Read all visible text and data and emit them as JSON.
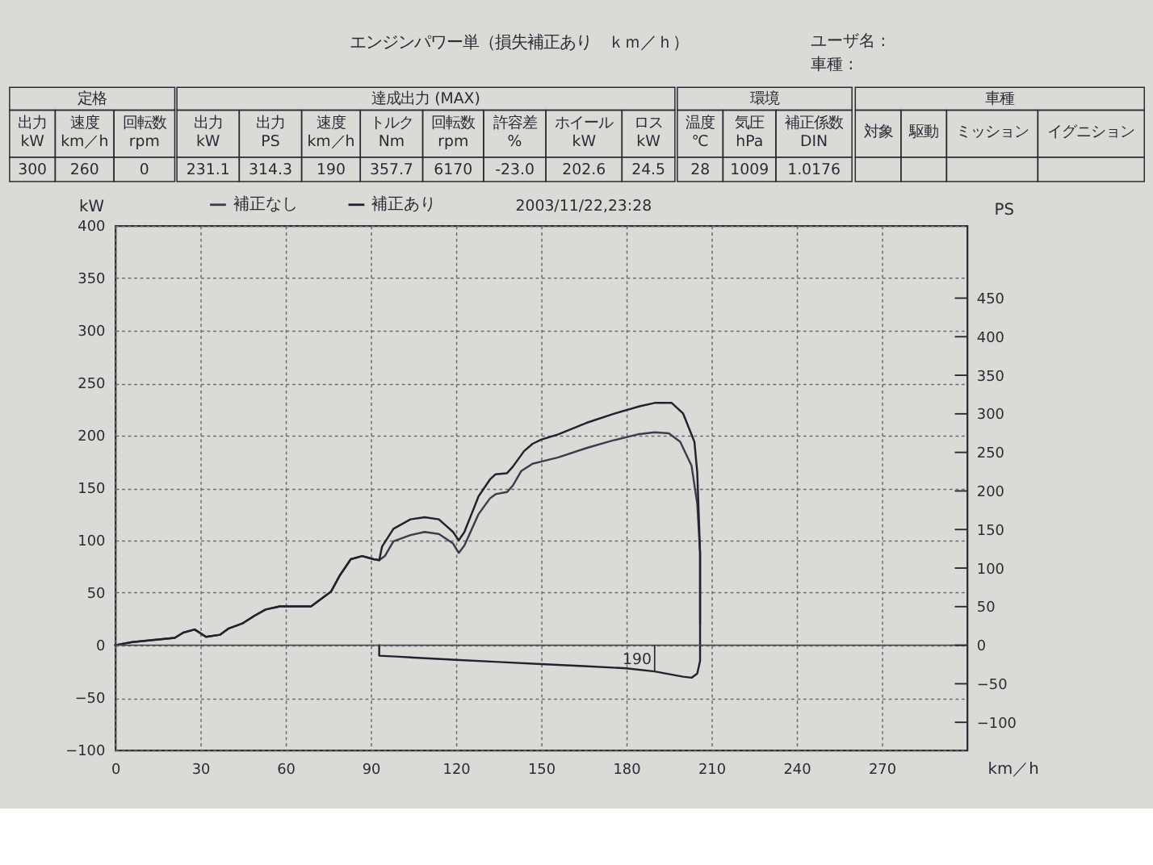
{
  "chart_data": [
    {
      "type": "other",
      "title": "エンジンパワー単（損失補正あり　ｋｍ／ｈ）",
      "annotations": [
        "ユーザ名 :",
        "車種 :"
      ]
    },
    {
      "type": "other",
      "title": "定格",
      "categories": [
        "出力 kW",
        "速度 km／h",
        "回転数 rpm"
      ],
      "values": [
        300,
        260,
        0
      ],
      "data_labels": true
    },
    {
      "type": "other",
      "title": "達成出力 (MAX)",
      "categories": [
        "出力 kW",
        "出力 PS",
        "速度 km／h",
        "トルク Nm",
        "回転数 rpm",
        "許容差 %",
        "ホイール kW",
        "ロス kW"
      ],
      "values": [
        231.1,
        314.3,
        190,
        357.7,
        6170,
        -23.0,
        202.6,
        24.5
      ],
      "value_labels": [
        "231.1",
        "314.3",
        "190",
        "357.7",
        "6170",
        "-23.0",
        "202.6",
        "24.5"
      ]
    },
    {
      "type": "other",
      "title": "環境",
      "categories": [
        "温度 ℃",
        "気圧 hPa",
        "補正係数 DIN"
      ],
      "values": [
        28,
        1009,
        1.0176
      ],
      "data_labels": true
    },
    {
      "type": "other",
      "title": "車種",
      "categories": [
        "対象",
        "駆動",
        "ミッション",
        "イグニション"
      ],
      "values": [
        null,
        null,
        null,
        null
      ],
      "data_labels": true
    },
    {
      "type": "line",
      "xlabel": "km／h",
      "ylabel": "kW",
      "y2label": "PS",
      "xlim": [
        0,
        300
      ],
      "xticks": [
        0,
        30,
        60,
        90,
        120,
        150,
        180,
        210,
        240,
        270
      ],
      "ylim": [
        -100,
        400
      ],
      "yticks": [
        -100,
        -50,
        0,
        50,
        100,
        150,
        200,
        250,
        300,
        350,
        400
      ],
      "y2lim": [
        -136,
        544
      ],
      "y2ticks": [
        -100,
        -50,
        0,
        50,
        100,
        150,
        200,
        250,
        300,
        350,
        400,
        450
      ],
      "grid": true,
      "legend": "top",
      "line_style": "solid",
      "ref_lines": [
        {
          "axis": "y",
          "value": 0,
          "color": "#4a4a58"
        }
      ],
      "annotations": [
        "2003/11/22,23:28",
        {
          "text": "190",
          "x": 190,
          "y": -25
        }
      ],
      "series": [
        {
          "name": "補正なし",
          "color": "#3c3c4c",
          "x": [
            0,
            6,
            21,
            24,
            28,
            32,
            37,
            40,
            45,
            49,
            53,
            58,
            63,
            69,
            76,
            79,
            83,
            87,
            91,
            93,
            95,
            98,
            104,
            109,
            114,
            119,
            121,
            123,
            128,
            132,
            134,
            138,
            140,
            143,
            147,
            150,
            156,
            166,
            175,
            184,
            190,
            195,
            199,
            203,
            205,
            206,
            206
          ],
          "values": [
            0,
            3,
            7,
            12,
            15,
            8,
            10,
            16,
            21,
            28,
            34,
            37,
            37,
            37,
            51,
            66,
            82,
            85,
            82,
            81,
            85,
            99,
            105,
            108,
            106,
            97,
            88,
            95,
            125,
            140,
            144,
            146,
            152,
            166,
            173,
            175,
            179,
            188,
            195,
            201,
            203,
            202,
            194,
            171,
            135,
            88,
            20
          ]
        },
        {
          "name": "補正あり",
          "color": "#22222e",
          "x": [
            0,
            6,
            21,
            24,
            28,
            32,
            37,
            40,
            45,
            49,
            53,
            58,
            63,
            69,
            76,
            79,
            83,
            87,
            91,
            93,
            94,
            98,
            104,
            109,
            114,
            119,
            121,
            123,
            128,
            132,
            134,
            138,
            140,
            144,
            147,
            150,
            156,
            166,
            176,
            185,
            190,
            196,
            200,
            204,
            205,
            206,
            206,
            206,
            205,
            203,
            200,
            190,
            180,
            165,
            150,
            135,
            120,
            100,
            93,
            93
          ],
          "values": [
            0,
            3,
            7,
            12,
            15,
            8,
            10,
            16,
            21,
            28,
            34,
            37,
            37,
            37,
            51,
            66,
            82,
            85,
            82,
            81,
            94,
            111,
            120,
            122,
            120,
            108,
            100,
            108,
            142,
            158,
            163,
            164,
            170,
            185,
            192,
            196,
            201,
            212,
            221,
            228,
            231,
            231,
            221,
            194,
            165,
            88,
            10,
            -15,
            -27,
            -31,
            -30,
            -25,
            -22,
            -20,
            -18,
            -16,
            -14,
            -11,
            -10,
            0
          ]
        }
      ]
    }
  ]
}
